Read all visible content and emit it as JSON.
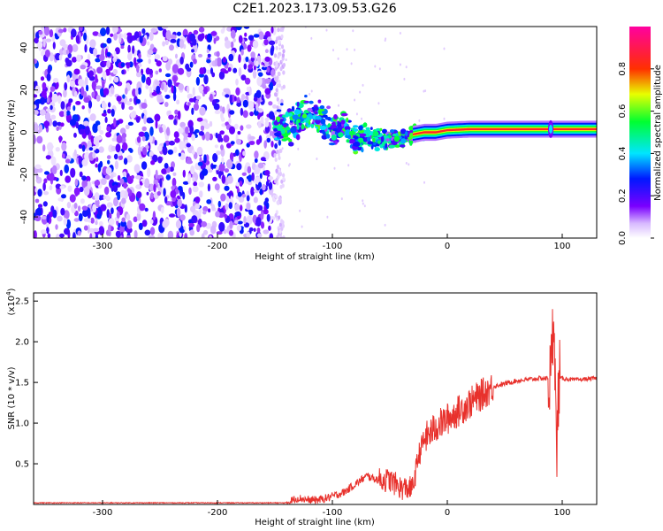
{
  "title": "C2E1.2023.173.09.53.G26",
  "colors": {
    "line": "#e8312c",
    "axis": "#000000"
  },
  "chart_data": [
    {
      "type": "heatmap",
      "xlabel": "Height of straight line (km)",
      "ylabel": "Frequency (Hz)",
      "xlim": [
        -360,
        130
      ],
      "ylim": [
        -50,
        50
      ],
      "xticks": [
        -300,
        -200,
        -100,
        0,
        100
      ],
      "yticks": [
        -40,
        -20,
        0,
        20,
        40
      ],
      "colorbar": {
        "label": "Normalized spectral amplitude",
        "range": [
          0,
          1
        ],
        "ticks": [
          "0.0",
          "0.2",
          "0.4",
          "0.6",
          "0.8"
        ],
        "colormap": "rainbow (white → purple → blue → cyan → green → yellow → red → magenta)"
      },
      "regions": [
        {
          "x_range": [
            -360,
            -150
          ],
          "description": "broadband noise across all frequencies",
          "max_amplitude": 0.3
        },
        {
          "x_range": [
            -150,
            0
          ],
          "description": "noisy trace near 0 Hz with scattered spread",
          "center_freq": 0,
          "max_amplitude": 0.6
        },
        {
          "x_range": [
            0,
            130
          ],
          "description": "narrow strong line",
          "center_freq": 1.5,
          "max_amplitude": 1.0
        }
      ],
      "trace": {
        "x": [
          -150,
          -140,
          -130,
          -120,
          -110,
          -100,
          -90,
          -80,
          -70,
          -60,
          -50,
          -40,
          -30,
          -20,
          -10,
          0,
          20,
          50,
          90,
          130
        ],
        "y": [
          1,
          2,
          7,
          8,
          6,
          1,
          4,
          -3,
          -2,
          -3,
          -3,
          -3,
          -1,
          0,
          0,
          1,
          1.5,
          1.5,
          1.5,
          1.5
        ]
      }
    },
    {
      "type": "line",
      "xlabel": "Height of straight line (km)",
      "ylabel": "SNR (10 * v/v)",
      "y_multiplier": "(x10",
      "y_multiplier_exp": "4",
      "xlim": [
        -360,
        130
      ],
      "ylim": [
        0,
        2.6
      ],
      "xticks": [
        -300,
        -200,
        -100,
        0,
        100
      ],
      "yticks": [
        "0.5",
        "1.0",
        "1.5",
        "2.0",
        "2.5"
      ],
      "series": [
        {
          "x": [
            -360,
            -300,
            -200,
            -140,
            -130,
            -120,
            -110,
            -100,
            -90,
            -80,
            -70,
            -60,
            -50,
            -40,
            -30,
            -25,
            -20,
            -10,
            0,
            10,
            20,
            30,
            40,
            60,
            80,
            90,
            93,
            95,
            97,
            100,
            110,
            130
          ],
          "y": [
            0.02,
            0.02,
            0.02,
            0.02,
            0.08,
            0.05,
            0.06,
            0.1,
            0.15,
            0.25,
            0.35,
            0.3,
            0.3,
            0.2,
            0.2,
            0.6,
            0.8,
            0.95,
            1.05,
            1.15,
            1.25,
            1.35,
            1.45,
            1.52,
            1.55,
            1.55,
            2.5,
            0.5,
            1.55,
            1.55,
            1.53,
            1.55
          ]
        }
      ]
    }
  ]
}
